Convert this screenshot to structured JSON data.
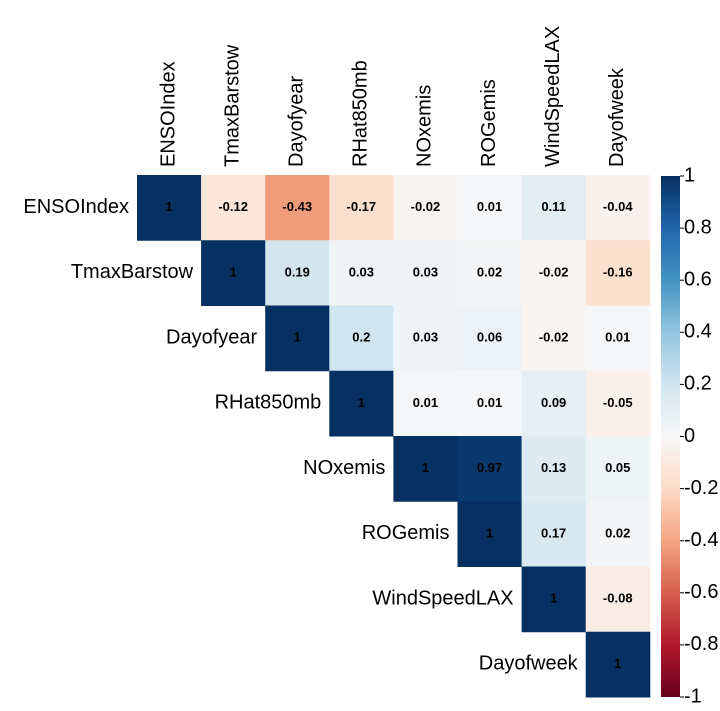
{
  "chart_data": {
    "type": "heatmap",
    "variables": [
      "ENSOIndex",
      "TmaxBarstow",
      "Dayofyear",
      "RHat850mb",
      "NOxemis",
      "ROGemis",
      "WindSpeedLAX",
      "Dayofweek"
    ],
    "values": [
      [
        1,
        -0.12,
        -0.43,
        -0.17,
        -0.02,
        0.01,
        0.11,
        -0.04
      ],
      [
        null,
        1,
        0.19,
        0.03,
        0.03,
        0.02,
        -0.02,
        -0.16
      ],
      [
        null,
        null,
        1,
        0.2,
        0.03,
        0.06,
        -0.02,
        0.01
      ],
      [
        null,
        null,
        null,
        1,
        0.01,
        0.01,
        0.09,
        -0.05
      ],
      [
        null,
        null,
        null,
        null,
        1,
        0.97,
        0.13,
        0.05
      ],
      [
        null,
        null,
        null,
        null,
        null,
        1,
        0.17,
        0.02
      ],
      [
        null,
        null,
        null,
        null,
        null,
        null,
        1,
        -0.08
      ],
      [
        null,
        null,
        null,
        null,
        null,
        null,
        null,
        1
      ]
    ],
    "colormap": [
      "#67001f",
      "#b2182b",
      "#d6604d",
      "#f4a582",
      "#fddbc7",
      "#f7f7f7",
      "#d1e5f0",
      "#92c5de",
      "#4393c3",
      "#2166ac",
      "#053061"
    ],
    "clim": [
      -1,
      1
    ],
    "cticks": [
      1,
      0.8,
      0.6,
      0.4,
      0.2,
      0,
      -0.2,
      -0.4,
      -0.6,
      -0.8,
      -1
    ]
  }
}
